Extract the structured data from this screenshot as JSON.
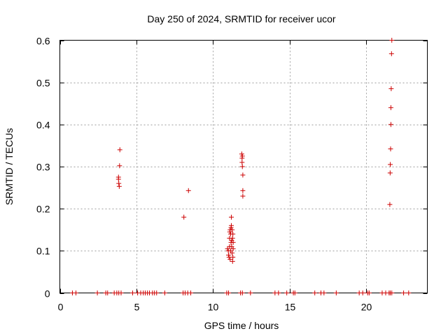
{
  "chart_data": {
    "type": "scatter",
    "title": "Day 250 of 2024, SRMTID for receiver ucor",
    "xlabel": "GPS time / hours",
    "ylabel": "SRMTID / TECUs",
    "xlim": [
      0,
      24
    ],
    "ylim": [
      0,
      0.6
    ],
    "xticks": [
      0,
      5,
      10,
      15,
      20
    ],
    "yticks": [
      0,
      0.1,
      0.2,
      0.3,
      0.4,
      0.5,
      0.6
    ],
    "xtick_labels": [
      "0",
      "5",
      "10",
      "15",
      "20"
    ],
    "ytick_labels": [
      "0",
      "0.1",
      "0.2",
      "0.3",
      "0.4",
      "0.5",
      "0.6"
    ],
    "grid": true,
    "marker": "+",
    "color": "#cc0000",
    "series": [
      {
        "name": "SRMTID",
        "points": [
          [
            0.82,
            0
          ],
          [
            1.05,
            0
          ],
          [
            2.45,
            0
          ],
          [
            3.0,
            0
          ],
          [
            3.12,
            0
          ],
          [
            3.55,
            0
          ],
          [
            3.72,
            0
          ],
          [
            3.85,
            0
          ],
          [
            4.0,
            0
          ],
          [
            4.75,
            0
          ],
          [
            5.08,
            0
          ],
          [
            5.28,
            0
          ],
          [
            5.45,
            0
          ],
          [
            5.58,
            0
          ],
          [
            5.72,
            0
          ],
          [
            5.85,
            0
          ],
          [
            6.05,
            0
          ],
          [
            6.18,
            0
          ],
          [
            6.32,
            0
          ],
          [
            6.85,
            0
          ],
          [
            8.05,
            0
          ],
          [
            8.18,
            0
          ],
          [
            8.35,
            0
          ],
          [
            8.55,
            0
          ],
          [
            10.9,
            0
          ],
          [
            11.02,
            0
          ],
          [
            11.8,
            0
          ],
          [
            11.92,
            0
          ],
          [
            12.45,
            0
          ],
          [
            14.05,
            0
          ],
          [
            14.28,
            0
          ],
          [
            14.82,
            0
          ],
          [
            15.25,
            0
          ],
          [
            15.35,
            0
          ],
          [
            16.65,
            0
          ],
          [
            17.05,
            0
          ],
          [
            17.25,
            0
          ],
          [
            18.05,
            0
          ],
          [
            19.55,
            0
          ],
          [
            19.78,
            0
          ],
          [
            20.1,
            0
          ],
          [
            20.2,
            0
          ],
          [
            21.05,
            0
          ],
          [
            21.28,
            0
          ],
          [
            21.5,
            0
          ],
          [
            21.58,
            0
          ],
          [
            21.68,
            0
          ],
          [
            22.45,
            0
          ],
          [
            22.78,
            0
          ],
          [
            3.83,
            0.275
          ],
          [
            3.83,
            0.27
          ],
          [
            3.85,
            0.26
          ],
          [
            3.88,
            0.253
          ],
          [
            3.9,
            0.302
          ],
          [
            3.92,
            0.34
          ],
          [
            8.1,
            0.18
          ],
          [
            8.4,
            0.243
          ],
          [
            10.95,
            0.105
          ],
          [
            11.0,
            0.1
          ],
          [
            11.02,
            0.09
          ],
          [
            11.05,
            0.085
          ],
          [
            11.08,
            0.11
          ],
          [
            11.08,
            0.13
          ],
          [
            11.1,
            0.145
          ],
          [
            11.12,
            0.15
          ],
          [
            11.12,
            0.08
          ],
          [
            11.15,
            0.1
          ],
          [
            11.15,
            0.14
          ],
          [
            11.18,
            0.155
          ],
          [
            11.18,
            0.12
          ],
          [
            11.2,
            0.16
          ],
          [
            11.2,
            0.18
          ],
          [
            11.22,
            0.125
          ],
          [
            11.22,
            0.11
          ],
          [
            11.25,
            0.15
          ],
          [
            11.25,
            0.095
          ],
          [
            11.28,
            0.13
          ],
          [
            11.28,
            0.075
          ],
          [
            11.3,
            0.14
          ],
          [
            11.3,
            0.085
          ],
          [
            11.32,
            0.12
          ],
          [
            11.32,
            0.105
          ],
          [
            11.88,
            0.33
          ],
          [
            11.9,
            0.32
          ],
          [
            11.9,
            0.31
          ],
          [
            11.92,
            0.325
          ],
          [
            11.92,
            0.3
          ],
          [
            11.95,
            0.28
          ],
          [
            11.95,
            0.243
          ],
          [
            11.95,
            0.23
          ],
          [
            21.55,
            0.21
          ],
          [
            21.57,
            0.285
          ],
          [
            21.58,
            0.305
          ],
          [
            21.6,
            0.342
          ],
          [
            21.62,
            0.4
          ],
          [
            21.62,
            0.44
          ],
          [
            21.64,
            0.485
          ],
          [
            21.66,
            0.568
          ],
          [
            21.68,
            0.6
          ]
        ]
      }
    ]
  }
}
